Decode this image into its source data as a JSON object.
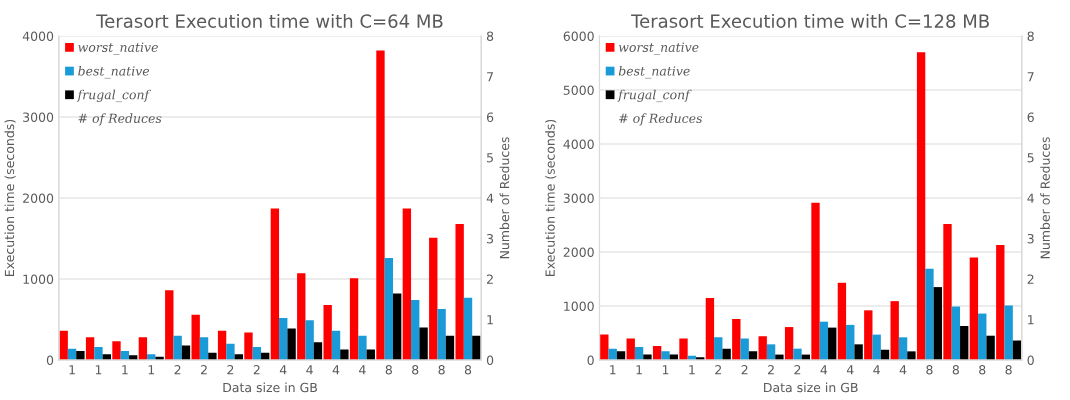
{
  "chart_data": [
    {
      "type": "bar",
      "title": "Terasort Execution time with C=64 MB",
      "xlabel": "Data size in GB",
      "ylabel": "Execution time (seconds)",
      "y2label": "Number of Reduces",
      "categories": [
        "1",
        "1",
        "1",
        "1",
        "2",
        "2",
        "2",
        "2",
        "4",
        "4",
        "4",
        "4",
        "8",
        "8",
        "8",
        "8"
      ],
      "series": [
        {
          "name": "worst_native",
          "color": "#ff0000",
          "values": [
            360,
            280,
            230,
            280,
            860,
            560,
            360,
            340,
            1870,
            1070,
            680,
            1010,
            3820,
            1870,
            1510,
            1680
          ]
        },
        {
          "name": "best_native",
          "color": "#1a9ad6",
          "values": [
            140,
            160,
            110,
            70,
            300,
            280,
            200,
            160,
            520,
            490,
            360,
            300,
            1260,
            740,
            630,
            770
          ]
        },
        {
          "name": "frugal_conf",
          "color": "#000000",
          "values": [
            110,
            70,
            60,
            40,
            180,
            90,
            70,
            90,
            390,
            220,
            130,
            130,
            820,
            400,
            300,
            300
          ]
        },
        {
          "name": "# of Reduces",
          "type": "line",
          "values": [
            null,
            null,
            null,
            null,
            null,
            null,
            null,
            null,
            null,
            null,
            null,
            null,
            null,
            null,
            null,
            null
          ]
        }
      ],
      "ylim": [
        0,
        4000
      ],
      "yticks": [
        0,
        1000,
        2000,
        3000,
        4000
      ],
      "y2lim": [
        0,
        8
      ],
      "y2ticks": [
        0,
        1,
        2,
        3,
        4,
        5,
        6,
        7,
        8
      ],
      "grid": "y",
      "legend": "top left"
    },
    {
      "type": "bar",
      "title": "Terasort Execution time with C=128 MB",
      "xlabel": "Data size in GB",
      "ylabel": "Execution time (seconds)",
      "y2label": "Number of Reduces",
      "categories": [
        "1",
        "1",
        "1",
        "1",
        "2",
        "2",
        "2",
        "2",
        "4",
        "4",
        "4",
        "4",
        "8",
        "8",
        "8",
        "8"
      ],
      "series": [
        {
          "name": "worst_native",
          "color": "#ff0000",
          "values": [
            470,
            400,
            260,
            400,
            1150,
            760,
            440,
            610,
            2910,
            1430,
            920,
            1090,
            5700,
            2520,
            1900,
            2130
          ]
        },
        {
          "name": "best_native",
          "color": "#1a9ad6",
          "values": [
            210,
            240,
            160,
            80,
            420,
            400,
            290,
            210,
            710,
            650,
            470,
            420,
            1690,
            990,
            860,
            1010
          ]
        },
        {
          "name": "frugal_conf",
          "color": "#000000",
          "values": [
            160,
            100,
            100,
            50,
            210,
            160,
            100,
            100,
            600,
            290,
            190,
            160,
            1350,
            630,
            450,
            360
          ]
        },
        {
          "name": "# of Reduces",
          "type": "line",
          "values": [
            null,
            null,
            null,
            null,
            null,
            null,
            null,
            null,
            null,
            null,
            null,
            null,
            null,
            null,
            null,
            null
          ]
        }
      ],
      "ylim": [
        0,
        6000
      ],
      "yticks": [
        0,
        1000,
        2000,
        3000,
        4000,
        5000,
        6000
      ],
      "y2lim": [
        0,
        8
      ],
      "y2ticks": [
        0,
        1,
        2,
        3,
        4,
        5,
        6,
        7,
        8
      ],
      "grid": "y",
      "legend": "top left"
    }
  ]
}
